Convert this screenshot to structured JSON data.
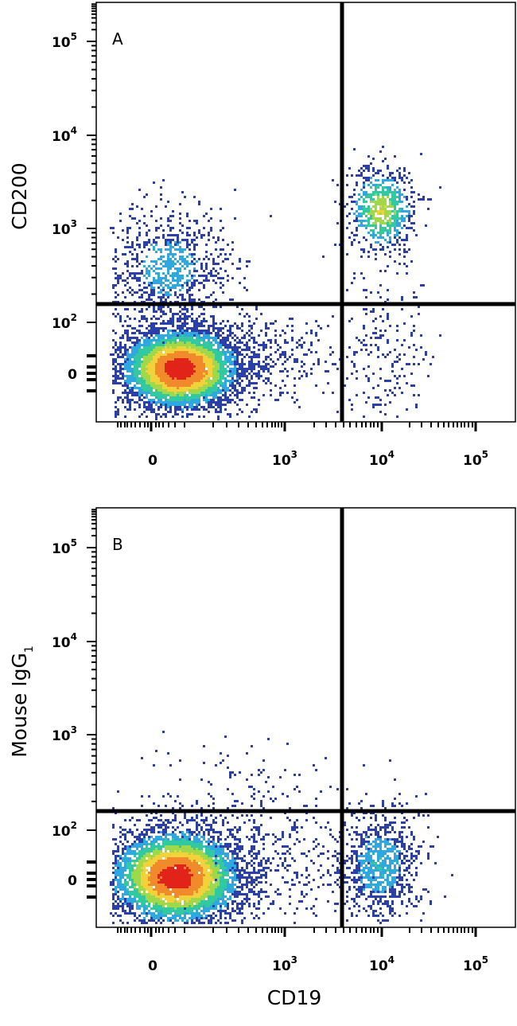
{
  "chart_data": [
    {
      "type": "scatter",
      "subtype": "flow-cytometry-density-dot-plot",
      "panel_label": "A",
      "xlabel": "CD19",
      "ylabel": "CD200",
      "y_subscript": "",
      "x_scale": "biexponential",
      "y_scale": "biexponential",
      "x_ticks": [
        {
          "value": 0,
          "base": "0",
          "exp": ""
        },
        {
          "value": 1000,
          "base": "10",
          "exp": "3"
        },
        {
          "value": 10000,
          "base": "10",
          "exp": "4"
        },
        {
          "value": 100000,
          "base": "10",
          "exp": "5"
        }
      ],
      "y_ticks": [
        {
          "value": 0,
          "base": "0",
          "exp": ""
        },
        {
          "value": 100,
          "base": "10",
          "exp": "2"
        },
        {
          "value": 1000,
          "base": "10",
          "exp": "3"
        },
        {
          "value": 10000,
          "base": "10",
          "exp": "4"
        },
        {
          "value": 100000,
          "base": "10",
          "exp": "5"
        }
      ],
      "quadrant_gate": {
        "x": 3500,
        "y": 190
      },
      "populations": [
        {
          "name": "CD19-CD200- cluster",
          "x_center": 150,
          "y_center": 10,
          "density": "high"
        },
        {
          "name": "CD19-CD200+ cluster",
          "x_center": 120,
          "y_center": 600,
          "density": "low"
        },
        {
          "name": "CD19+CD200+ cluster",
          "x_center": 10000,
          "y_center": 1800,
          "density": "medium"
        },
        {
          "name": "CD19+CD200- cluster",
          "x_center": 10000,
          "y_center": 40,
          "density": "sparse"
        }
      ]
    },
    {
      "type": "scatter",
      "subtype": "flow-cytometry-density-dot-plot",
      "panel_label": "B",
      "xlabel": "CD19",
      "ylabel": "Mouse IgG",
      "y_subscript": "1",
      "x_scale": "biexponential",
      "y_scale": "biexponential",
      "x_ticks": [
        {
          "value": 0,
          "base": "0",
          "exp": ""
        },
        {
          "value": 1000,
          "base": "10",
          "exp": "3"
        },
        {
          "value": 10000,
          "base": "10",
          "exp": "4"
        },
        {
          "value": 100000,
          "base": "10",
          "exp": "5"
        }
      ],
      "y_ticks": [
        {
          "value": 0,
          "base": "0",
          "exp": ""
        },
        {
          "value": 100,
          "base": "10",
          "exp": "2"
        },
        {
          "value": 1000,
          "base": "10",
          "exp": "3"
        },
        {
          "value": 10000,
          "base": "10",
          "exp": "4"
        },
        {
          "value": 100000,
          "base": "10",
          "exp": "5"
        }
      ],
      "quadrant_gate": {
        "x": 3500,
        "y": 190
      },
      "populations": [
        {
          "name": "CD19- cluster",
          "x_center": 150,
          "y_center": 10,
          "density": "high"
        },
        {
          "name": "CD19+ cluster",
          "x_center": 10000,
          "y_center": 30,
          "density": "medium"
        }
      ]
    }
  ],
  "shared_xlabel": "CD19",
  "colors": {
    "density_low": "#2b3fa8",
    "density_midlow": "#2fa8e0",
    "density_mid": "#33c9a0",
    "density_midhigh": "#9fd84a",
    "density_high": "#f2d23a",
    "density_peak": "#e2231a",
    "gate": "#000000"
  }
}
